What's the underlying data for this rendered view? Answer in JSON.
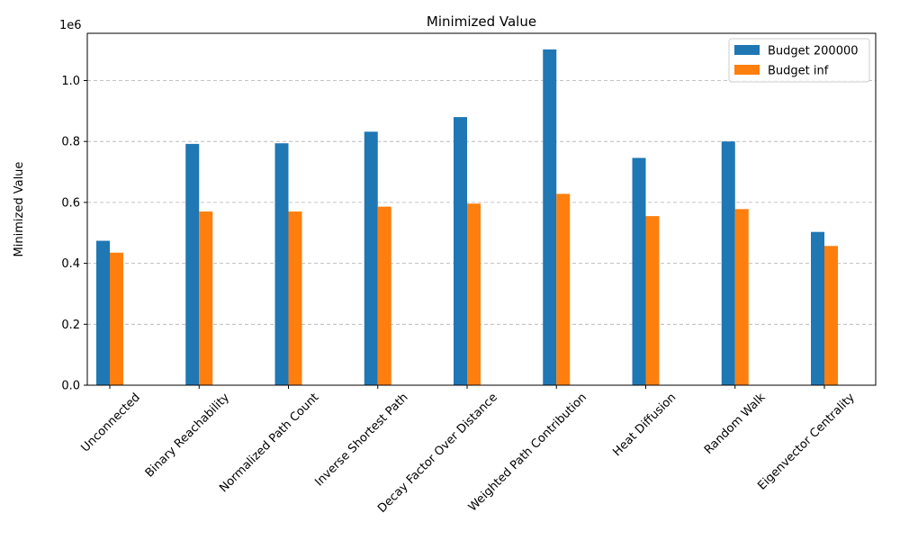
{
  "chart_data": {
    "type": "bar",
    "title": "Minimized Value",
    "xlabel": "",
    "ylabel": "Minimized Value",
    "y_scale_label": "1e6",
    "ylim": [
      0,
      1.155
    ],
    "yticks": [
      0.0,
      0.2,
      0.4,
      0.6,
      0.8,
      1.0
    ],
    "ytick_labels": [
      "0.0",
      "0.2",
      "0.4",
      "0.6",
      "0.8",
      "1.0"
    ],
    "grid": "y-dashed",
    "legend_position": "top-right",
    "categories": [
      "Unconnected",
      "Binary Reachability",
      "Normalized Path Count",
      "Inverse Shortest Path",
      "Decay Factor Over Distance",
      "Weighted Path Contribution",
      "Heat Diffusion",
      "Random Walk",
      "Eigenvector Centrality"
    ],
    "series": [
      {
        "name": "Budget 200000",
        "color": "#1f77b4",
        "values": [
          0.474,
          0.792,
          0.794,
          0.832,
          0.88,
          1.102,
          0.746,
          0.8,
          0.503
        ]
      },
      {
        "name": "Budget inf",
        "color": "#ff7f0e",
        "values": [
          0.435,
          0.57,
          0.57,
          0.586,
          0.596,
          0.628,
          0.555,
          0.578,
          0.457
        ]
      }
    ]
  }
}
